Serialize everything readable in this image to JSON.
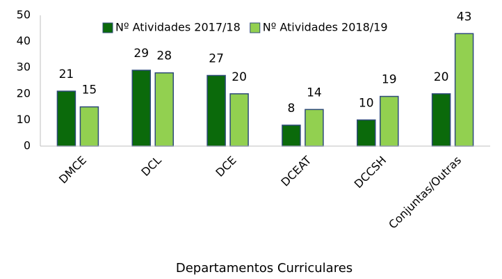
{
  "chart_data": {
    "type": "bar",
    "x_label": "Departamentos Curriculares",
    "categories": [
      "DMCE",
      "DCL",
      "DCE",
      "DCEAT",
      "DCCSH",
      "Conjuntas/Outras"
    ],
    "series": [
      {
        "name": "Nº Atividades 2017/18",
        "color": "#0b6a0b",
        "values": [
          21,
          29,
          27,
          8,
          10,
          20
        ]
      },
      {
        "name": "Nº Atividades 2018/19",
        "color": "#92d050",
        "values": [
          15,
          28,
          20,
          14,
          19,
          43
        ]
      }
    ],
    "ylim": [
      0,
      50
    ],
    "yticks": [
      0,
      10,
      20,
      30,
      40,
      50
    ],
    "grid": false,
    "legend": "top"
  }
}
